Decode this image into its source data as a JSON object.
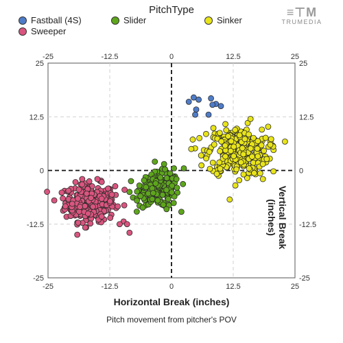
{
  "legend": {
    "title": "PitchType",
    "items": [
      {
        "label": "Fastball (4S)",
        "color": "#4f7cc8"
      },
      {
        "label": "Slider",
        "color": "#5ea61c"
      },
      {
        "label": "Sinker",
        "color": "#e8e41a"
      },
      {
        "label": "Sweeper",
        "color": "#d9557f"
      }
    ]
  },
  "logo": {
    "name": "TRUMEDIA",
    "icon": "trumedia-logo"
  },
  "chart_data": {
    "type": "scatter",
    "xlabel": "Horizontal Break (inches)",
    "ylabel": "Vertical Break (inches)",
    "caption": "Pitch movement from pitcher's POV",
    "xlim": [
      -25,
      25
    ],
    "ylim": [
      -25,
      25
    ],
    "ticks": [
      -25,
      -12.5,
      0,
      12.5,
      25
    ],
    "tick_labels": [
      "-25",
      "-12.5",
      "0",
      "12.5",
      "25"
    ],
    "grid": true,
    "legend_position": "top",
    "series": [
      {
        "name": "Fastball (4S)",
        "color": "#4f7cc8",
        "points": [
          [
            4.5,
            17
          ],
          [
            5.5,
            16.5
          ],
          [
            8,
            16.8
          ],
          [
            9,
            15.5
          ],
          [
            10,
            15
          ],
          [
            8.3,
            15.3
          ],
          [
            4.8,
            13
          ],
          [
            7.5,
            13
          ],
          [
            3.5,
            16
          ],
          [
            5,
            14.2
          ]
        ]
      },
      {
        "name": "Slider",
        "color": "#5ea61c",
        "cluster": {
          "cx": -2.5,
          "cy": -4.5,
          "sx": 2.0,
          "sy": 2.0,
          "n": 200,
          "outliers": [
            [
              -7,
              -7
            ],
            [
              -8.5,
              -5
            ],
            [
              -6.5,
              -3.5
            ],
            [
              -1.5,
              1.5
            ],
            [
              0.5,
              0.5
            ],
            [
              2.5,
              0.5
            ],
            [
              1,
              -2
            ],
            [
              -1,
              -9
            ]
          ]
        }
      },
      {
        "name": "Sinker",
        "color": "#e8e41a",
        "cluster": {
          "cx": 13.5,
          "cy": 4.5,
          "sx": 3.0,
          "sy": 2.8,
          "n": 320,
          "outliers": [
            [
              4,
              5
            ],
            [
              4.3,
              7.2
            ],
            [
              6,
              3.5
            ],
            [
              18.5,
              1.5
            ],
            [
              18.5,
              -2
            ],
            [
              7,
              8.5
            ],
            [
              16,
              12
            ],
            [
              20,
              6
            ]
          ]
        }
      },
      {
        "name": "Sweeper",
        "color": "#d9557f",
        "cluster": {
          "cx": -16.5,
          "cy": -7.5,
          "sx": 2.5,
          "sy": 2.2,
          "n": 300,
          "outliers": [
            [
              -9.5,
              -4.5
            ],
            [
              -9,
              -12.5
            ],
            [
              -8.5,
              -14.5
            ],
            [
              -10.5,
              -12.5
            ],
            [
              -22,
              -6.5
            ],
            [
              -15,
              -2
            ]
          ]
        }
      }
    ]
  }
}
